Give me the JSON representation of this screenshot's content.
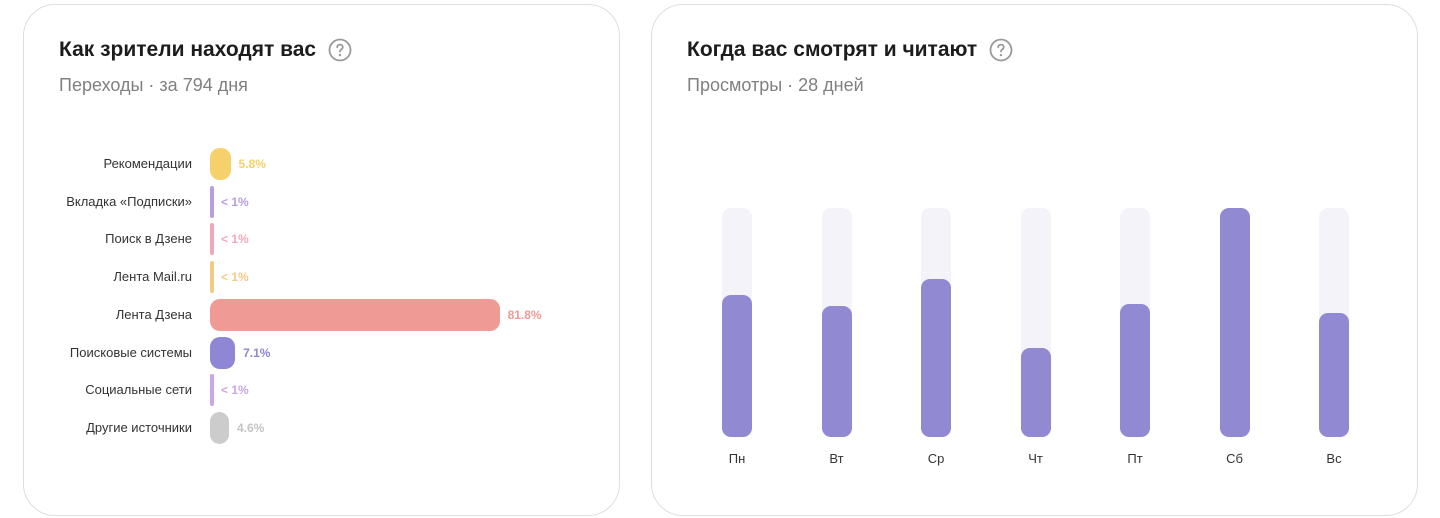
{
  "sources_card": {
    "title": "Как зрители находят вас",
    "help_icon": "question-circle-icon",
    "subtitle": "Переходы · за 794 дня"
  },
  "time_card": {
    "title": "Когда вас смотрят и читают",
    "help_icon": "question-circle-icon",
    "subtitle": "Просмотры · 28 дней"
  },
  "chart_data": [
    {
      "type": "bar",
      "orientation": "horizontal",
      "categories": [
        "Рекомендации",
        "Вкладка «Подписки»",
        "Поиск в Дзене",
        "Лента Mail.ru",
        "Лента Дзена",
        "Поисковые системы",
        "Социальные сети",
        "Другие источники"
      ],
      "values": [
        5.8,
        0.5,
        0.5,
        0.5,
        81.8,
        7.1,
        0.5,
        4.6
      ],
      "value_labels": [
        "5.8%",
        "< 1%",
        "< 1%",
        "< 1%",
        "81.8%",
        "7.1%",
        "< 1%",
        "4.6%"
      ],
      "colors": [
        "#f5d06b",
        "#b99de0",
        "#f0a8b8",
        "#f3c98a",
        "#ef9a94",
        "#8f86d6",
        "#c9a6e4",
        "#cccccc"
      ],
      "xlim": [
        0,
        100
      ],
      "grid": false
    },
    {
      "type": "bar",
      "orientation": "vertical",
      "categories": [
        "Пн",
        "Вт",
        "Ср",
        "Чт",
        "Пт",
        "Сб",
        "Вс"
      ],
      "values": [
        62,
        57,
        69,
        39,
        58,
        100,
        54
      ],
      "ylim": [
        0,
        100
      ],
      "color": "#9189d2",
      "track_color": "#f4f3fa",
      "grid": false
    }
  ]
}
